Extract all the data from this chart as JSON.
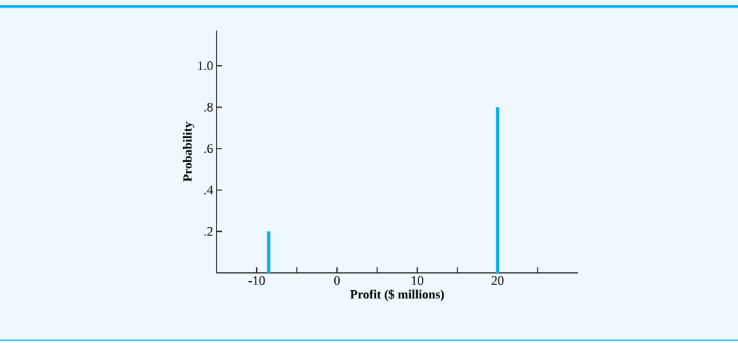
{
  "chart_data": {
    "type": "bar",
    "xlabel": "Profit ($ millions)",
    "ylabel": "Probability",
    "x": [
      -8.5,
      20
    ],
    "values": [
      0.2,
      0.8
    ],
    "color": "#00aeef",
    "xlim": [
      -15,
      30
    ],
    "ylim": [
      0,
      1.17
    ],
    "xticks": [
      -10,
      {
        "value": -5,
        "label": null
      },
      0,
      {
        "value": 5,
        "label": null
      },
      10,
      {
        "value": 15,
        "label": null
      },
      20,
      {
        "value": 25,
        "label": null
      }
    ],
    "yticks": [
      {
        "value": 0.2,
        "label": ".2"
      },
      {
        "value": 0.4,
        "label": ".4"
      },
      {
        "value": 0.6,
        "label": ".6"
      },
      {
        "value": 0.8,
        "label": ".8"
      },
      {
        "value": 1.0,
        "label": "1.0"
      }
    ],
    "grid": false
  }
}
